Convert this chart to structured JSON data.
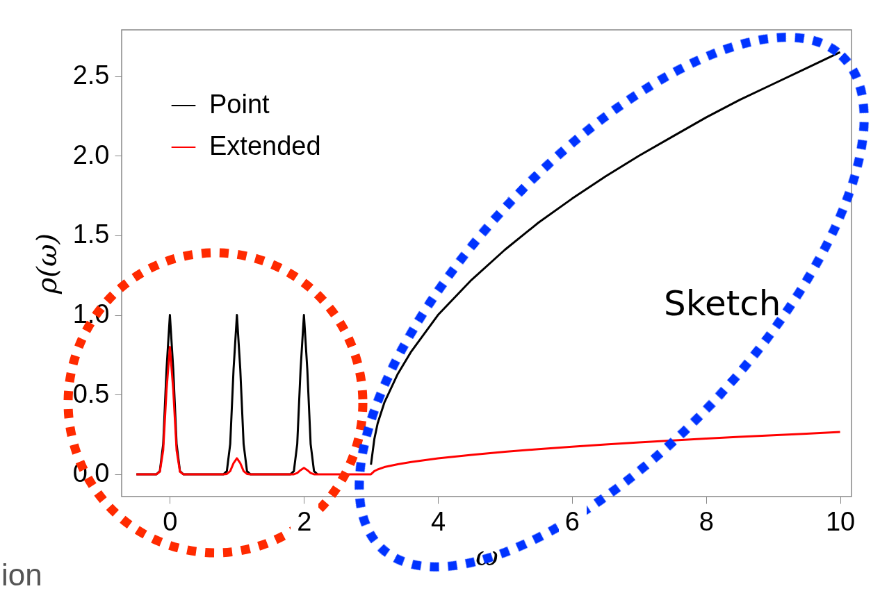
{
  "chart_data": {
    "type": "line",
    "xlabel": "ω",
    "ylabel": "ρ(ω)",
    "x": [
      -0.5,
      -0.2,
      -0.15,
      -0.1,
      -0.05,
      0,
      0.05,
      0.1,
      0.15,
      0.2,
      0.8,
      0.85,
      0.9,
      0.95,
      1,
      1.05,
      1.1,
      1.15,
      1.2,
      1.8,
      1.85,
      1.9,
      1.95,
      2,
      2.05,
      2.1,
      2.15,
      2.2,
      2.99,
      3,
      3.05,
      3.1,
      3.2,
      3.4,
      3.6,
      4,
      4.5,
      5,
      5.5,
      6,
      6.5,
      7,
      7.5,
      8,
      8.5,
      9,
      9.5,
      10
    ],
    "series": [
      {
        "name": "Point",
        "color": "#000000",
        "values": [
          0,
          0,
          0.02,
          0.19,
          0.66,
          1,
          0.66,
          0.19,
          0.02,
          0,
          0,
          0.02,
          0.19,
          0.66,
          1,
          0.66,
          0.19,
          0.02,
          0,
          0,
          0.02,
          0.19,
          0.66,
          1,
          0.66,
          0.19,
          0.02,
          0,
          null,
          0.06,
          0.22,
          0.32,
          0.45,
          0.63,
          0.77,
          1.0,
          1.22,
          1.41,
          1.58,
          1.73,
          1.87,
          2.0,
          2.12,
          2.24,
          2.35,
          2.45,
          2.55,
          2.65
        ]
      },
      {
        "name": "Extended",
        "color": "#ff0000",
        "values": [
          0,
          0,
          0.016,
          0.15,
          0.53,
          0.8,
          0.53,
          0.15,
          0.016,
          0,
          0,
          0.002,
          0.02,
          0.07,
          0.1,
          0.07,
          0.02,
          0.002,
          0,
          0,
          0,
          0.008,
          0.026,
          0.04,
          0.026,
          0.008,
          0,
          0,
          0,
          0,
          0.02,
          0.03,
          0.045,
          0.063,
          0.077,
          0.1,
          0.122,
          0.141,
          0.158,
          0.173,
          0.187,
          0.2,
          0.212,
          0.224,
          0.235,
          0.245,
          0.255,
          0.265
        ]
      }
    ],
    "xlim": [
      -0.72,
      10.17
    ],
    "ylim": [
      -0.14,
      2.79
    ],
    "xticks": [
      0,
      2,
      4,
      6,
      8,
      10
    ],
    "yticks": [
      {
        "value": 0,
        "label": "0.0"
      },
      0.5,
      {
        "value": 1,
        "label": "1.0"
      },
      1.5,
      {
        "value": 2,
        "label": "2.0"
      },
      2.5
    ],
    "grid": false,
    "legend": "top left",
    "marker": "none",
    "line_style": "solid",
    "annotations": [
      "Sketch",
      "ion"
    ]
  }
}
